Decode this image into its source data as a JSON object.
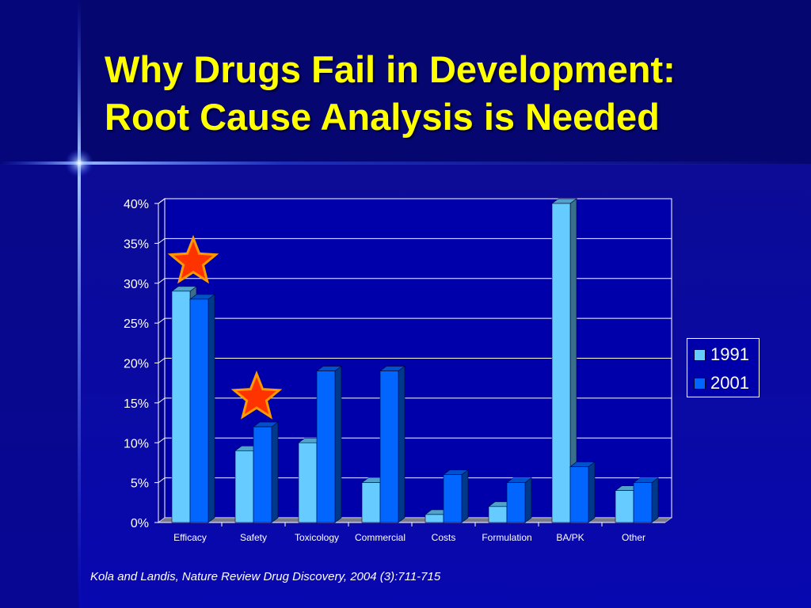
{
  "slide": {
    "title_line1": "Why Drugs Fail in Development:",
    "title_line2": "Root Cause Analysis is Needed",
    "citation": "Kola and Landis, Nature Review Drug Discovery, 2004 (3):711-715"
  },
  "colors": {
    "title": "#ffff00",
    "background": "#0a0aa6",
    "series_1991": "#66ccff",
    "series_2001": "#0066ff",
    "star_fill": "#ff3300",
    "star_stroke": "#ff9900"
  },
  "chart_data": {
    "type": "bar",
    "categories": [
      "Efficacy",
      "Safety",
      "Toxicology",
      "Commercial",
      "Costs",
      "Formulation",
      "BA/PK",
      "Other"
    ],
    "series": [
      {
        "name": "1991",
        "values": [
          29,
          9,
          10,
          5,
          1,
          2,
          40,
          4
        ]
      },
      {
        "name": "2001",
        "values": [
          28,
          12,
          19,
          19,
          6,
          5,
          7,
          5
        ]
      }
    ],
    "ylim": [
      0,
      40
    ],
    "y_ticks": [
      "0%",
      "5%",
      "10%",
      "15%",
      "20%",
      "25%",
      "30%",
      "35%",
      "40%"
    ],
    "grid": true,
    "style": "3d",
    "legend_position": "right",
    "annotations": [
      {
        "type": "star",
        "category": "Efficacy"
      },
      {
        "type": "star",
        "category": "Safety"
      }
    ]
  }
}
